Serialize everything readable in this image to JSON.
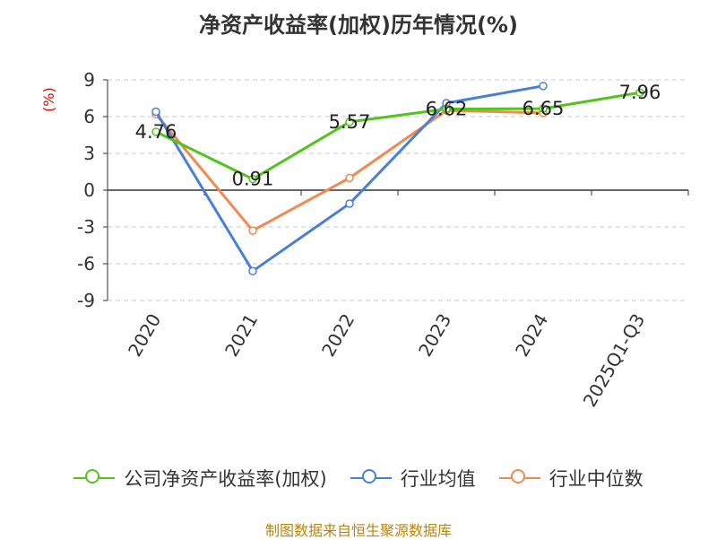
{
  "title": "净资产收益率(加权)历年情况(%)",
  "source": "制图数据来自恒生聚源数据库",
  "chart_data": {
    "type": "line",
    "title": "净资产收益率(加权)历年情况(%)",
    "ylabel": "(%)",
    "xlabel": "",
    "categories": [
      "2020",
      "2021",
      "2022",
      "2023",
      "2024",
      "2025Q1-Q3"
    ],
    "ylim": [
      -9,
      9
    ],
    "yticks": [
      9,
      6,
      3,
      0,
      -3,
      -6,
      -9
    ],
    "grid": true,
    "legend_position": "bottom",
    "series": [
      {
        "name": "公司净资产收益率(加权)",
        "color": "#52c41a",
        "values": [
          4.76,
          0.91,
          5.57,
          6.62,
          6.65,
          7.96
        ],
        "labels": [
          "4.76",
          "0.91",
          "5.57",
          "6.62",
          "6.65",
          "7.96"
        ]
      },
      {
        "name": "行业均值",
        "color": "#4a7fd8",
        "values": [
          6.4,
          -6.6,
          -1.1,
          7.1,
          8.5,
          null
        ]
      },
      {
        "name": "行业中位数",
        "color": "#f28a4f",
        "values": [
          6.2,
          -3.3,
          1.0,
          6.5,
          6.3,
          null
        ]
      }
    ]
  }
}
